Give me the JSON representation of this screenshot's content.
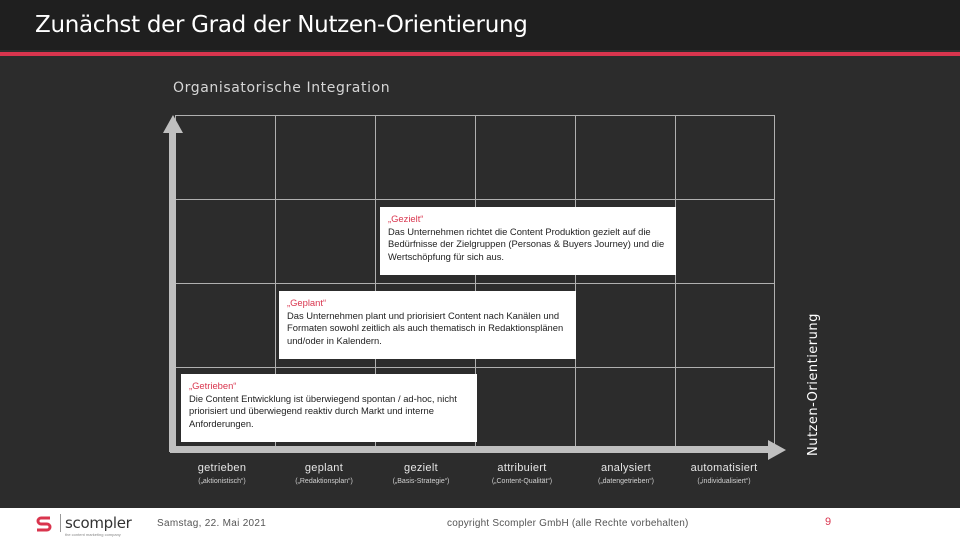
{
  "header": {
    "title": "Zunächst der Grad der Nutzen-Orientierung"
  },
  "diagram": {
    "y_axis_top_label": "Organisatorische Integration",
    "y_axis_right_label": "Nutzen-Orientierung",
    "columns": [
      {
        "label": "getrieben",
        "sub": "(„aktionistisch“)"
      },
      {
        "label": "geplant",
        "sub": "(„Redaktionsplan“)"
      },
      {
        "label": "gezielt",
        "sub": "(„Basis-Strategie“)"
      },
      {
        "label": "attribuiert",
        "sub": "(„Content-Qualität“)"
      },
      {
        "label": "analysiert",
        "sub": "(„datengetrieben“)"
      },
      {
        "label": "automatisiert",
        "sub": "(„individualisiert“)"
      }
    ],
    "boxes": [
      {
        "title": "„Gezielt“",
        "text": "Das Unternehmen richtet die Content Produktion gezielt auf die Bedürfnisse der Zielgruppen (Personas & Buyers Journey) und die Wertschöpfung für sich aus."
      },
      {
        "title": "„Geplant“",
        "text": "Das Unternehmen plant und priorisiert Content nach Kanälen und Formaten sowohl zeitlich als auch thematisch in Redaktionsplänen und/oder in Kalendern."
      },
      {
        "title": "„Getrieben“",
        "text": "Die Content Entwicklung ist überwiegend spontan / ad-hoc, nicht priorisiert und überwiegend reaktiv durch Markt und interne Anforderungen."
      }
    ]
  },
  "footer": {
    "logo": "scompler",
    "logo_tagline": "the content marketing company",
    "date": "Samstag, 22. Mai 2021",
    "copyright": "copyright Scompler GmbH (alle Rechte vorbehalten)",
    "page": "9"
  },
  "colors": {
    "accent": "#d9354e",
    "background": "#2c2c2c",
    "header": "#1f1f1f"
  }
}
